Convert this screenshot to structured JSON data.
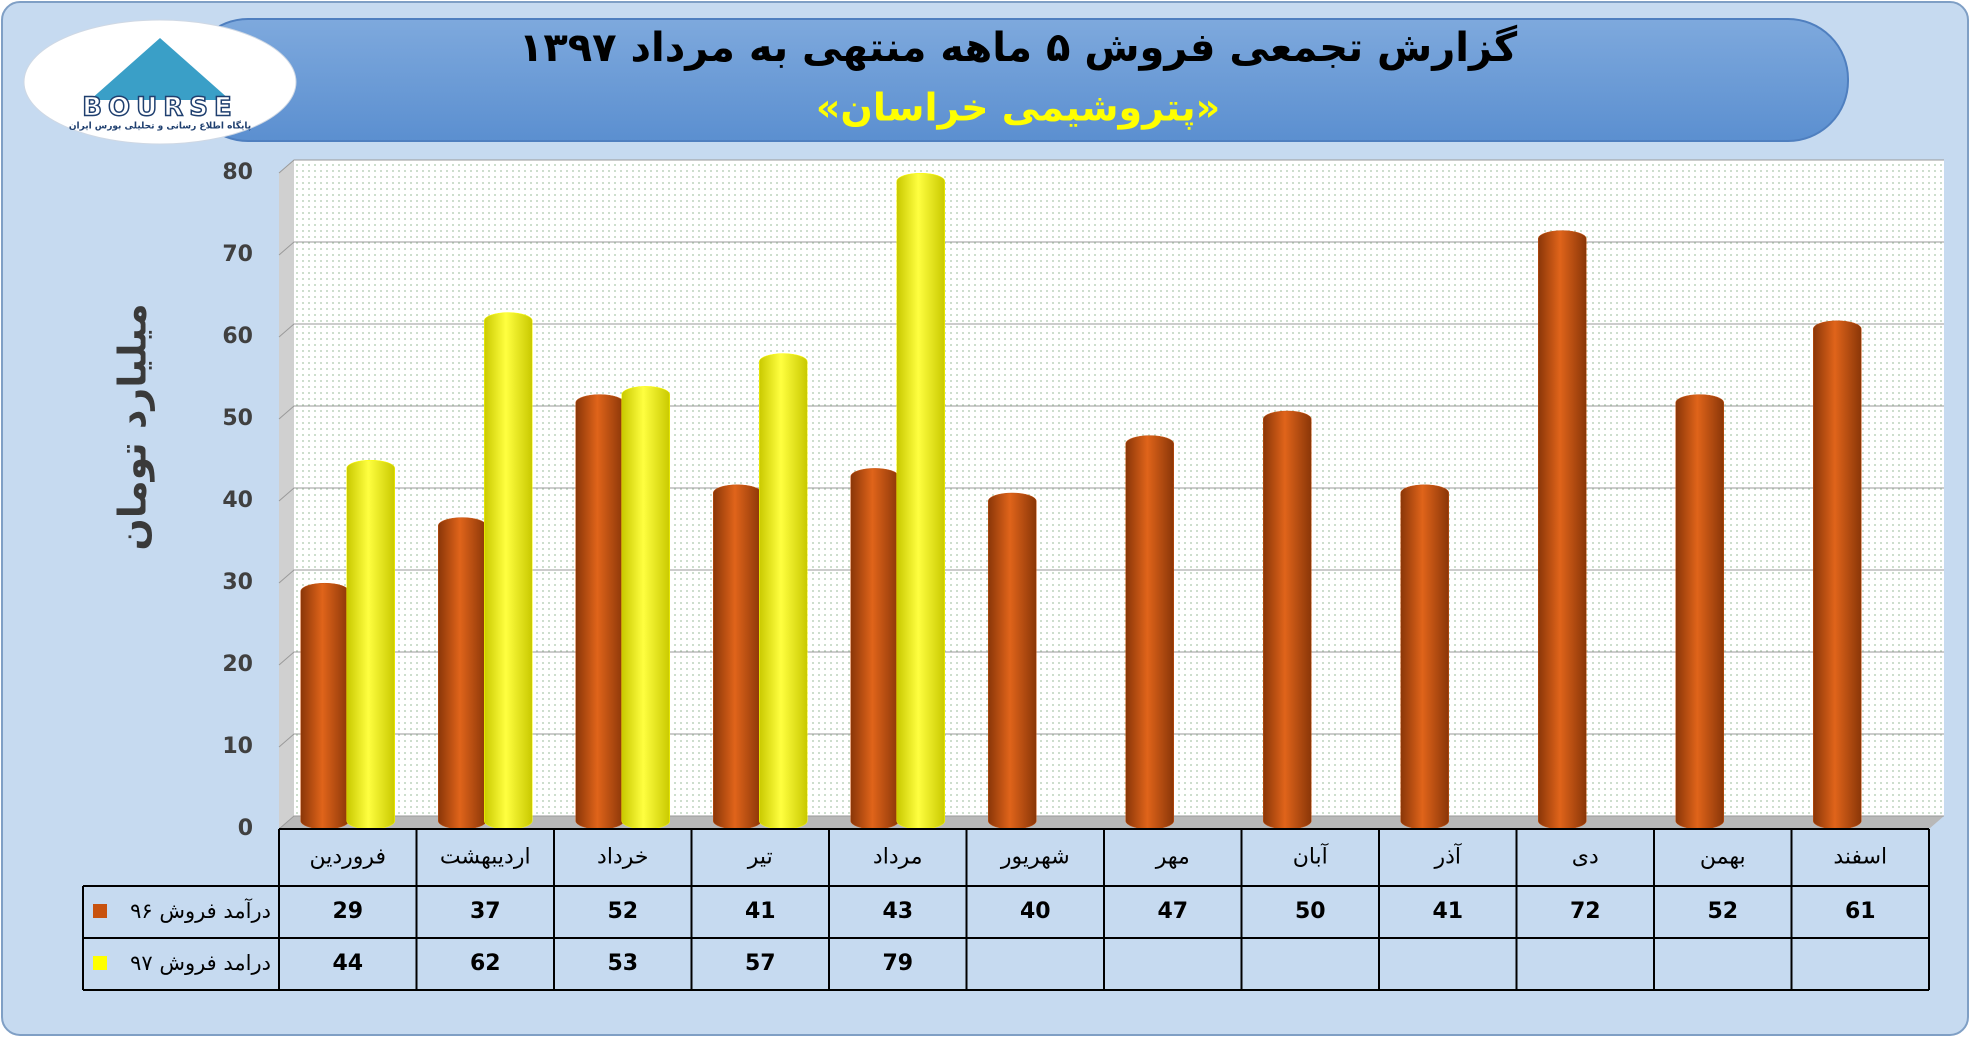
{
  "logo": {
    "text": "BOURSE",
    "caption": "پایگاه اطلاع رسانی و تحلیلی بورس ایران"
  },
  "chart_data": {
    "type": "bar",
    "title": "گزارش تجمعی فروش ۵ ماهه منتهی به مرداد ۱۳۹۷",
    "subtitle": "«پتروشیمی خراسان»",
    "y_label": "میلیارد تومان",
    "categories": [
      "فروردین",
      "اردیبهشت",
      "خرداد",
      "تیر",
      "مرداد",
      "شهریور",
      "مهر",
      "آبان",
      "آذر",
      "دی",
      "بهمن",
      "اسفند"
    ],
    "series": [
      {
        "name": "درآمد فروش ۹۶",
        "color": "#c8520e",
        "values": [
          29,
          37,
          52,
          41,
          43,
          40,
          47,
          50,
          41,
          72,
          52,
          61
        ]
      },
      {
        "name": "درامد فروش ۹۷",
        "color": "#ffff00",
        "values": [
          44,
          62,
          53,
          57,
          79,
          null,
          null,
          null,
          null,
          null,
          null,
          null
        ]
      }
    ],
    "ylim": [
      0,
      80
    ],
    "yticks": [
      0,
      10,
      20,
      30,
      40,
      50,
      60,
      70,
      80
    ],
    "grid": true,
    "data_table": true
  }
}
